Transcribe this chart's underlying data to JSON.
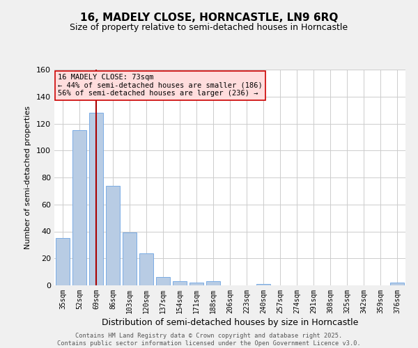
{
  "title": "16, MADELY CLOSE, HORNCASTLE, LN9 6RQ",
  "subtitle": "Size of property relative to semi-detached houses in Horncastle",
  "xlabel": "Distribution of semi-detached houses by size in Horncastle",
  "ylabel": "Number of semi-detached properties",
  "categories": [
    "35sqm",
    "52sqm",
    "69sqm",
    "86sqm",
    "103sqm",
    "120sqm",
    "137sqm",
    "154sqm",
    "171sqm",
    "188sqm",
    "206sqm",
    "223sqm",
    "240sqm",
    "257sqm",
    "274sqm",
    "291sqm",
    "308sqm",
    "325sqm",
    "342sqm",
    "359sqm",
    "376sqm"
  ],
  "values": [
    35,
    115,
    128,
    74,
    39,
    24,
    6,
    3,
    2,
    3,
    0,
    0,
    1,
    0,
    0,
    0,
    0,
    0,
    0,
    0,
    2
  ],
  "bar_color": "#b8cce4",
  "bar_edge_color": "#7aace4",
  "vline_x": 2,
  "vline_color": "#aa0000",
  "annotation_title": "16 MADELY CLOSE: 73sqm",
  "annotation_line1": "← 44% of semi-detached houses are smaller (186)",
  "annotation_line2": "56% of semi-detached houses are larger (236) →",
  "annotation_box_facecolor": "#ffdddd",
  "annotation_box_edgecolor": "#cc0000",
  "ylim": [
    0,
    160
  ],
  "yticks": [
    0,
    20,
    40,
    60,
    80,
    100,
    120,
    140,
    160
  ],
  "footer_line1": "Contains HM Land Registry data © Crown copyright and database right 2025.",
  "footer_line2": "Contains public sector information licensed under the Open Government Licence v3.0.",
  "background_color": "#f0f0f0",
  "plot_background_color": "#ffffff",
  "grid_color": "#cccccc",
  "title_fontsize": 11,
  "subtitle_fontsize": 9
}
